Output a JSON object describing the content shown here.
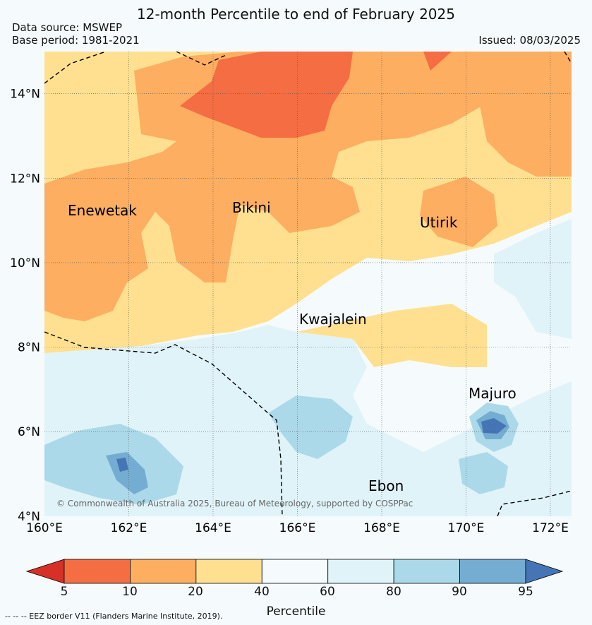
{
  "title": "12-month Percentile to end of February 2025",
  "data_source": "Data source: MSWEP",
  "base_period": "Base period: 1981-2021",
  "issued": "Issued: 08/03/2025",
  "copyright": "© Commonwealth of Australia 2025, Bureau of Meteorology, supported by COSPPac",
  "eez_note": "--  --  -- EEZ border V11 (Flanders Marine Institute, 2019).",
  "map": {
    "lon_range": [
      160,
      172.5
    ],
    "lat_range": [
      4,
      15
    ],
    "lon_ticks": [
      "160°E",
      "162°E",
      "164°E",
      "166°E",
      "168°E",
      "170°E",
      "172°E"
    ],
    "lat_ticks": [
      "14°N",
      "12°N",
      "10°N",
      "8°N",
      "6°N",
      "4°N"
    ],
    "places": [
      {
        "name": "Enewetak"
      },
      {
        "name": "Bikini"
      },
      {
        "name": "Utirik"
      },
      {
        "name": "Kwajalein"
      },
      {
        "name": "Majuro"
      },
      {
        "name": "Ebon"
      }
    ]
  },
  "colorbar": {
    "label": "Percentile",
    "ticks": [
      "5",
      "10",
      "20",
      "40",
      "60",
      "80",
      "90",
      "95"
    ],
    "colors": [
      "#d73027",
      "#f46d43",
      "#fdae61",
      "#fee090",
      "#f5fbfd",
      "#e0f3f8",
      "#abd9e9",
      "#74add1",
      "#4575b4"
    ]
  }
}
